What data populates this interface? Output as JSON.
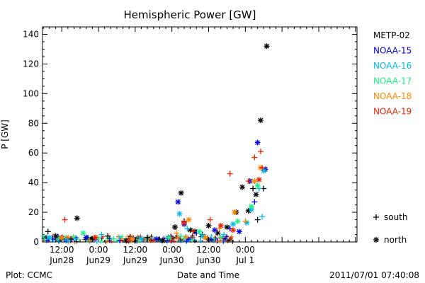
{
  "chart_data": {
    "type": "scatter",
    "title": "Hemispheric Power [GW]",
    "xlabel": "Date and Time",
    "ylabel": "P [GW]",
    "ylim": [
      0,
      145
    ],
    "yticks": [
      0,
      20,
      40,
      60,
      80,
      100,
      120,
      140
    ],
    "x_unit": "hours since 2011-06-28 00:00 UT",
    "xlim": [
      5.7,
      108.5
    ],
    "xticks": [
      {
        "x": 12,
        "time": "12:00",
        "date": "Jun28"
      },
      {
        "x": 24,
        "time": "0:00",
        "date": "Jun29"
      },
      {
        "x": 36,
        "time": "12:00",
        "date": "Jun29"
      },
      {
        "x": 48,
        "time": "0:00",
        "date": "Jun30"
      },
      {
        "x": 60,
        "time": "12:00",
        "date": "Jun30"
      },
      {
        "x": 72,
        "time": "0:00",
        "date": "Jul 1"
      }
    ],
    "legend": {
      "placement": "right",
      "markers": [
        {
          "symbol": "+",
          "label": "south"
        },
        {
          "symbol": "*",
          "label": "north"
        }
      ]
    },
    "series": [
      {
        "name": "METP-02",
        "color": "#000000",
        "points": [
          {
            "x": 7.5,
            "y": 7,
            "m": "+"
          },
          {
            "x": 10,
            "y": 4,
            "m": "*"
          },
          {
            "x": 15,
            "y": 2,
            "m": "+"
          },
          {
            "x": 17,
            "y": 16,
            "m": "*"
          },
          {
            "x": 22,
            "y": 2,
            "m": "*"
          },
          {
            "x": 27,
            "y": 4,
            "m": "+"
          },
          {
            "x": 33,
            "y": 1,
            "m": "*"
          },
          {
            "x": 40,
            "y": 3,
            "m": "+"
          },
          {
            "x": 45,
            "y": 1,
            "m": "*"
          },
          {
            "x": 49,
            "y": 10,
            "m": "*"
          },
          {
            "x": 51,
            "y": 33,
            "m": "*"
          },
          {
            "x": 52,
            "y": 14,
            "m": "+"
          },
          {
            "x": 54,
            "y": 8,
            "m": "*"
          },
          {
            "x": 55.5,
            "y": 7,
            "m": "*"
          },
          {
            "x": 58,
            "y": 5,
            "m": "+"
          },
          {
            "x": 60,
            "y": 11,
            "m": "*"
          },
          {
            "x": 63,
            "y": 6,
            "m": "*"
          },
          {
            "x": 66,
            "y": 10,
            "m": "*"
          },
          {
            "x": 69,
            "y": 20,
            "m": "*"
          },
          {
            "x": 71,
            "y": 37,
            "m": "*"
          },
          {
            "x": 73,
            "y": 21,
            "m": "*"
          },
          {
            "x": 74.5,
            "y": 36,
            "m": "+"
          },
          {
            "x": 75.5,
            "y": 32,
            "m": "*"
          },
          {
            "x": 76,
            "y": 15,
            "m": "+"
          },
          {
            "x": 77,
            "y": 82,
            "m": "*"
          },
          {
            "x": 78,
            "y": 36,
            "m": "+"
          },
          {
            "x": 79,
            "y": 132,
            "m": "*"
          }
        ]
      },
      {
        "name": "NOAA-15",
        "color": "#0000dd",
        "points": [
          {
            "x": 9,
            "y": 2,
            "m": "+"
          },
          {
            "x": 20,
            "y": 3,
            "m": "*"
          },
          {
            "x": 31,
            "y": 1,
            "m": "+"
          },
          {
            "x": 43,
            "y": 2,
            "m": "*"
          },
          {
            "x": 50,
            "y": 27,
            "m": "*"
          },
          {
            "x": 52,
            "y": 12,
            "m": "*"
          },
          {
            "x": 56,
            "y": 6,
            "m": "+"
          },
          {
            "x": 62,
            "y": 8,
            "m": "*"
          },
          {
            "x": 67,
            "y": 9,
            "m": "+"
          },
          {
            "x": 70,
            "y": 7,
            "m": "*"
          },
          {
            "x": 73.5,
            "y": 41,
            "m": "*"
          },
          {
            "x": 75,
            "y": 27,
            "m": "+"
          },
          {
            "x": 76,
            "y": 67,
            "m": "*"
          },
          {
            "x": 78.5,
            "y": 49,
            "m": "*"
          }
        ]
      },
      {
        "name": "NOAA-16",
        "color": "#00bbee",
        "points": [
          {
            "x": 8,
            "y": 3,
            "m": "*"
          },
          {
            "x": 14,
            "y": 1,
            "m": "+"
          },
          {
            "x": 25,
            "y": 5,
            "m": "+"
          },
          {
            "x": 38,
            "y": 2,
            "m": "*"
          },
          {
            "x": 50.5,
            "y": 19,
            "m": "*"
          },
          {
            "x": 53,
            "y": 9,
            "m": "+"
          },
          {
            "x": 58,
            "y": 4,
            "m": "*"
          },
          {
            "x": 65,
            "y": 5,
            "m": "+"
          },
          {
            "x": 68,
            "y": 12,
            "m": "*"
          },
          {
            "x": 72.5,
            "y": 13,
            "m": "*"
          },
          {
            "x": 74,
            "y": 22,
            "m": "*"
          },
          {
            "x": 76.5,
            "y": 36,
            "m": "+"
          },
          {
            "x": 77.5,
            "y": 17,
            "m": "+"
          },
          {
            "x": 78,
            "y": 48,
            "m": "*"
          }
        ]
      },
      {
        "name": "NOAA-17",
        "color": "#22ee88",
        "points": [
          {
            "x": 11,
            "y": 2,
            "m": "+"
          },
          {
            "x": 19,
            "y": 6,
            "m": "*"
          },
          {
            "x": 29,
            "y": 2,
            "m": "+"
          },
          {
            "x": 47,
            "y": 3,
            "m": "*"
          },
          {
            "x": 51,
            "y": 4,
            "m": "+"
          },
          {
            "x": 57,
            "y": 7,
            "m": "*"
          },
          {
            "x": 64,
            "y": 3,
            "m": "+"
          },
          {
            "x": 69.5,
            "y": 14,
            "m": "*"
          },
          {
            "x": 74,
            "y": 24,
            "m": "*"
          },
          {
            "x": 76,
            "y": 38,
            "m": "*"
          }
        ]
      },
      {
        "name": "NOAA-18",
        "color": "#ff8800",
        "points": [
          {
            "x": 12,
            "y": 3,
            "m": "*"
          },
          {
            "x": 21,
            "y": 1,
            "m": "+"
          },
          {
            "x": 35,
            "y": 2,
            "m": "*"
          },
          {
            "x": 49.5,
            "y": 6,
            "m": "+"
          },
          {
            "x": 53.5,
            "y": 15,
            "m": "*"
          },
          {
            "x": 59,
            "y": 3,
            "m": "*"
          },
          {
            "x": 63.5,
            "y": 9,
            "m": "+"
          },
          {
            "x": 68.5,
            "y": 20,
            "m": "*"
          },
          {
            "x": 72,
            "y": 14,
            "m": "+"
          },
          {
            "x": 75,
            "y": 41,
            "m": "*"
          },
          {
            "x": 77,
            "y": 50,
            "m": "*"
          }
        ]
      },
      {
        "name": "NOAA-19",
        "color": "#ee2200",
        "points": [
          {
            "x": 13,
            "y": 15,
            "m": "+"
          },
          {
            "x": 23,
            "y": 3,
            "m": "*"
          },
          {
            "x": 34,
            "y": 1,
            "m": "+"
          },
          {
            "x": 52,
            "y": 13,
            "m": "*"
          },
          {
            "x": 55,
            "y": 7,
            "m": "+"
          },
          {
            "x": 60.5,
            "y": 15,
            "m": "+"
          },
          {
            "x": 64,
            "y": 11,
            "m": "*"
          },
          {
            "x": 67,
            "y": 46,
            "m": "+"
          },
          {
            "x": 68,
            "y": 8,
            "m": "*"
          },
          {
            "x": 73,
            "y": 41,
            "m": "+"
          },
          {
            "x": 75,
            "y": 57,
            "m": "+"
          },
          {
            "x": 76.5,
            "y": 42,
            "m": "*"
          },
          {
            "x": 77,
            "y": 61,
            "m": "+"
          },
          {
            "x": 77.5,
            "y": 50,
            "m": "+"
          }
        ]
      }
    ]
  },
  "footer": {
    "left": "Plot: CCMC",
    "right": "2011/07/01 07:40:08"
  }
}
